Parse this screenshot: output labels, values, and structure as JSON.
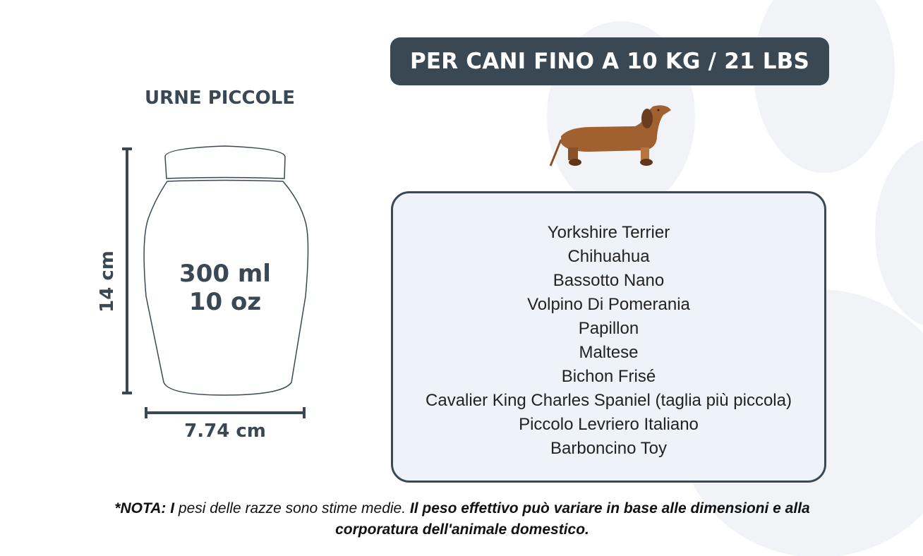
{
  "banner": {
    "title": "PER CANI FINO A 10 KG / 21 LBS"
  },
  "urn": {
    "title": "URNE PICCOLE",
    "volume_ml": "300 ml",
    "volume_oz": "10 oz",
    "height": "14 cm",
    "width": "7.74 cm"
  },
  "dog_icon": "dachshund-icon",
  "breeds": [
    "Yorkshire Terrier",
    "Chihuahua",
    "Bassotto Nano",
    "Volpino Di Pomerania",
    "Papillon",
    "Maltese",
    "Bichon Frisé",
    "Cavalier King Charles Spaniel (taglia più piccola)",
    "Piccolo Levriero Italiano",
    "Barboncino Toy"
  ],
  "note": {
    "prefix": "*NOTA: I",
    "middle": " pesi delle razze sono stime medie.",
    "suffix": " Il peso effettivo può variare in base alle dimensioni e alla corporatura dell'animale domestico."
  },
  "colors": {
    "dark": "#3a4853",
    "box_bg": "#eef3f9",
    "paw": "#f1f3f6",
    "dog": "#a0602f"
  }
}
